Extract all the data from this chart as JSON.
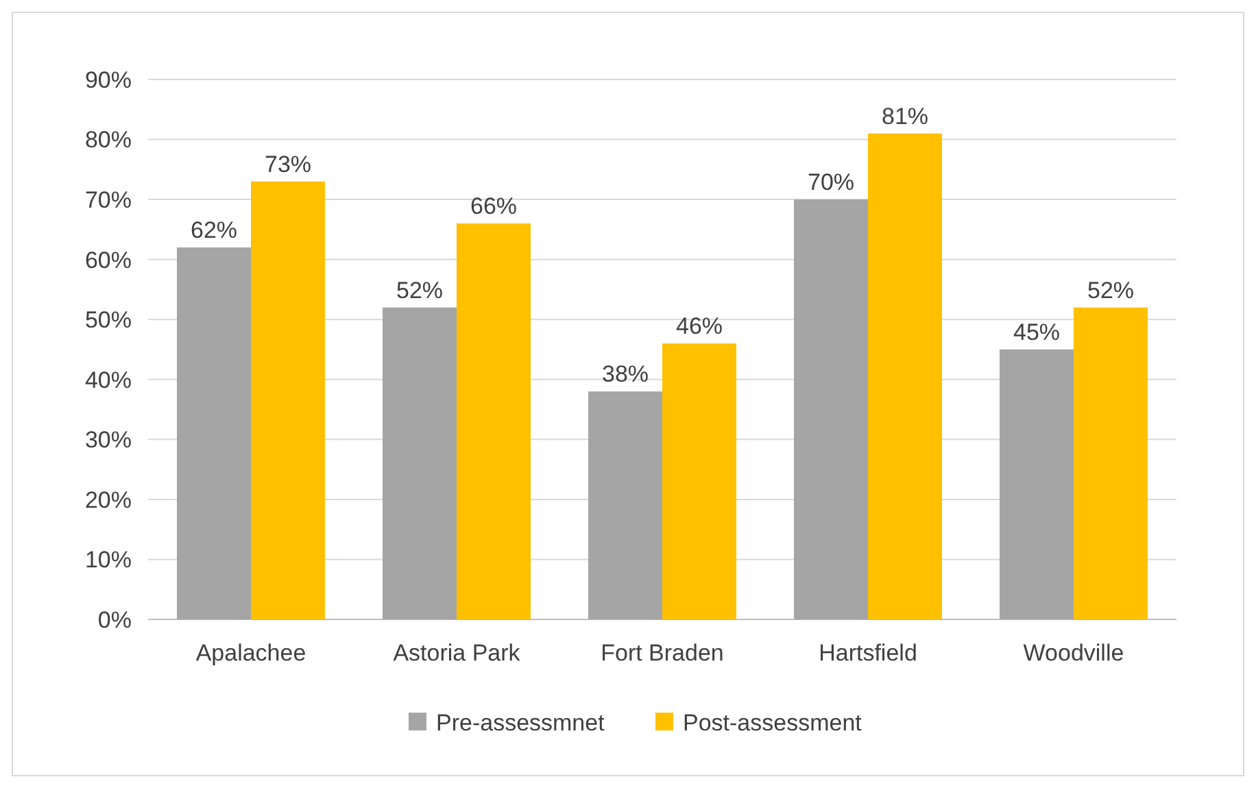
{
  "chart_data": {
    "type": "bar",
    "categories": [
      "Apalachee",
      "Astoria Park",
      "Fort Braden",
      "Hartsfield",
      "Woodville"
    ],
    "series": [
      {
        "name": "Pre-assessmnet",
        "color": "#a5a5a5",
        "values": [
          62,
          52,
          38,
          70,
          45
        ],
        "value_labels": [
          "62%",
          "52%",
          "38%",
          "70%",
          "45%"
        ]
      },
      {
        "name": "Post-assessment",
        "color": "#ffc000",
        "values": [
          73,
          66,
          46,
          81,
          52
        ],
        "value_labels": [
          "73%",
          "66%",
          "46%",
          "81%",
          "52%"
        ]
      }
    ],
    "ylim": [
      0,
      90
    ],
    "yticks": [
      {
        "value": 0,
        "label": "0%"
      },
      {
        "value": 10,
        "label": "10%"
      },
      {
        "value": 20,
        "label": "20%"
      },
      {
        "value": 30,
        "label": "30%"
      },
      {
        "value": 40,
        "label": "40%"
      },
      {
        "value": 50,
        "label": "50%"
      },
      {
        "value": 60,
        "label": "60%"
      },
      {
        "value": 70,
        "label": "70%"
      },
      {
        "value": 80,
        "label": "80%"
      },
      {
        "value": 90,
        "label": "90%"
      }
    ],
    "grid": "y",
    "legend": "bottom"
  }
}
